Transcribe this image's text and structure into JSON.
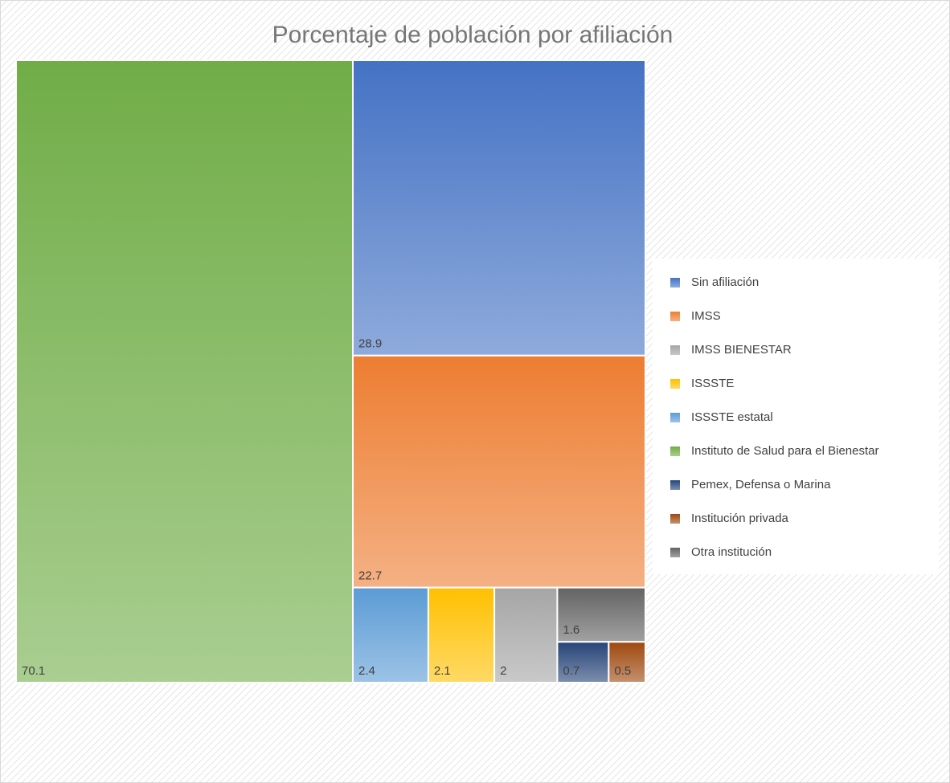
{
  "chart_data": {
    "type": "treemap",
    "title": "Porcentaje de población por afiliación",
    "series": [
      {
        "name": "Sin afiliación",
        "color": "#4472c4",
        "values": [
          28.9
        ]
      },
      {
        "name": "IMSS",
        "color": "#ed7d31",
        "values": [
          22.7
        ]
      },
      {
        "name": "IMSS BIENESTAR",
        "color": "#a5a5a5",
        "values": [
          2
        ]
      },
      {
        "name": "ISSSTE",
        "color": "#ffc000",
        "values": [
          2.1
        ]
      },
      {
        "name": "ISSSTE estatal",
        "color": "#5b9bd5",
        "values": [
          2.4
        ]
      },
      {
        "name": "Instituto de Salud para el Bienestar",
        "color": "#70ad47",
        "values": [
          70.1
        ]
      },
      {
        "name": "Pemex, Defensa o Marina",
        "color": "#264478",
        "values": [
          0.7
        ]
      },
      {
        "name": "Institución privada",
        "color": "#9e480e",
        "values": [
          0.5
        ]
      },
      {
        "name": "Otra institución",
        "color": "#636363",
        "values": [
          1.6
        ]
      }
    ],
    "legend": "right"
  }
}
